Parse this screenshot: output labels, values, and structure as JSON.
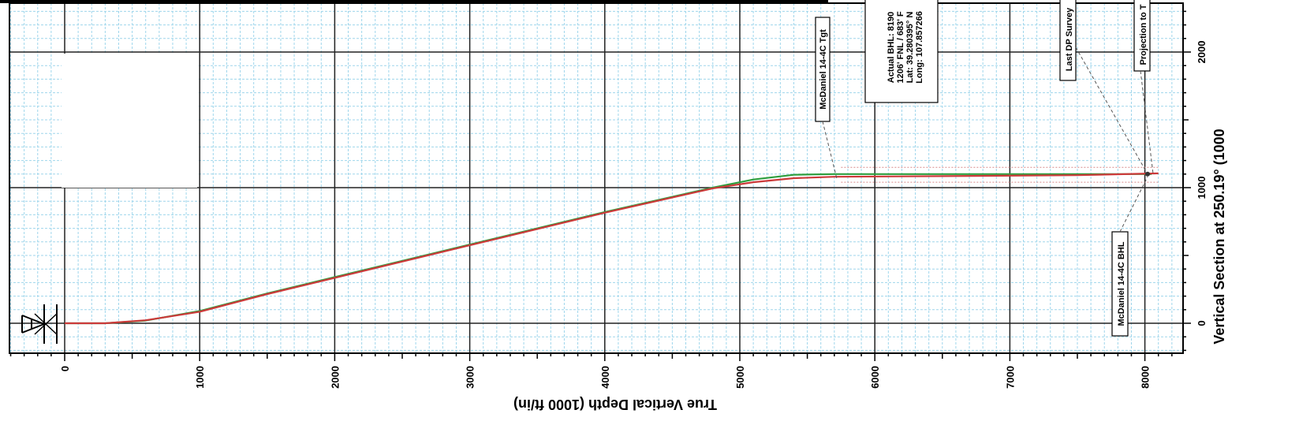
{
  "chart_data": {
    "type": "line",
    "xlabel": "True Vertical Depth (1000 ft/in)",
    "ylabel": "Vertical Section at 250.19° (1000",
    "xlim": [
      -400,
      8250
    ],
    "ylim": [
      -200,
      2300
    ],
    "x_ticks": [
      0,
      1000,
      2000,
      3000,
      4000,
      5000,
      6000,
      7000,
      8000
    ],
    "y_ticks": [
      0,
      1000,
      2000
    ],
    "grid": true,
    "series": [
      {
        "color": "#2e9e3e",
        "points": [
          [
            0,
            0
          ],
          [
            300,
            0
          ],
          [
            600,
            20
          ],
          [
            1000,
            90
          ],
          [
            1500,
            220
          ],
          [
            2000,
            340
          ],
          [
            3000,
            580
          ],
          [
            4000,
            820
          ],
          [
            4800,
            1000
          ],
          [
            5100,
            1060
          ],
          [
            5400,
            1095
          ],
          [
            5700,
            1100
          ],
          [
            6500,
            1100
          ],
          [
            7500,
            1100
          ],
          [
            8050,
            1100
          ]
        ]
      },
      {
        "color": "#cc3a3a",
        "points": [
          [
            0,
            0
          ],
          [
            300,
            0
          ],
          [
            600,
            22
          ],
          [
            1000,
            85
          ],
          [
            1500,
            215
          ],
          [
            2000,
            335
          ],
          [
            3000,
            575
          ],
          [
            4000,
            815
          ],
          [
            4800,
            995
          ],
          [
            5100,
            1040
          ],
          [
            5400,
            1070
          ],
          [
            5700,
            1080
          ],
          [
            6500,
            1085
          ],
          [
            7500,
            1092
          ],
          [
            8100,
            1105
          ]
        ]
      }
    ],
    "annotations": [
      {
        "text": "McDaniel 14-4C Tgt",
        "x": 5720,
        "y": 1060
      },
      {
        "text": "Actual BHL: 8190",
        "x": 6500,
        "y": 1090
      },
      {
        "text": "1206' FNL / 683' F",
        "x": 6500,
        "y": 1090
      },
      {
        "text": "Lat: 39.280395° N",
        "x": 6500,
        "y": 1090
      },
      {
        "text": "Long: 107.857266",
        "x": 6500,
        "y": 1090
      },
      {
        "text": "Last DP Survey",
        "x": 8020,
        "y": 1100
      },
      {
        "text": "Projection to T",
        "x": 8060,
        "y": 1110
      },
      {
        "text": "McDaniel 14-4C BHL",
        "x": 8020,
        "y": 1080
      }
    ]
  }
}
